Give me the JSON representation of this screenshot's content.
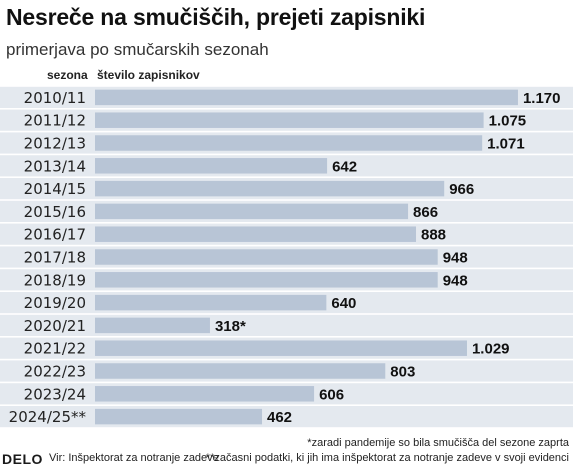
{
  "header": {
    "title": "Nesreče na smučiščih, prejeti zapisniki",
    "subtitle": "primerjava po smučarskih sezonah",
    "col_season": "sezona",
    "col_count": "število zapisnikov"
  },
  "footer": {
    "logo": "DELO",
    "source": "Vir: Inšpektorat za notranje zadeve",
    "note1": "*zaradi pandemije so bila smučišča del sezone zaprta",
    "note2": "**začasni podatki, ki jih ima inšpektorat za notranje zadeve v svoji evidenci"
  },
  "colors": {
    "bar": "#b8c5d6",
    "stripe": "#e4e9ef",
    "text": "#1a1a1a"
  },
  "chart_data": {
    "type": "bar",
    "orientation": "horizontal",
    "title": "Nesreče na smučiščih, prejeti zapisniki",
    "subtitle": "primerjava po smučarskih sezonah",
    "xlabel": "število zapisnikov",
    "ylabel": "sezona",
    "xlim": [
      0,
      1200
    ],
    "grid": false,
    "categories": [
      "2010/11",
      "2011/12",
      "2012/13",
      "2013/14",
      "2014/15",
      "2015/16",
      "2016/17",
      "2017/18",
      "2018/19",
      "2019/20",
      "2020/21",
      "2021/22",
      "2022/23",
      "2023/24",
      "2024/25**"
    ],
    "values": [
      1170,
      1075,
      1071,
      642,
      966,
      866,
      888,
      948,
      948,
      640,
      318,
      1029,
      803,
      606,
      462
    ],
    "value_labels": [
      "1.170",
      "1.075",
      "1.071",
      "642",
      "966",
      "866",
      "888",
      "948",
      "948",
      "640",
      "318*",
      "1.029",
      "803",
      "606",
      "462"
    ]
  }
}
